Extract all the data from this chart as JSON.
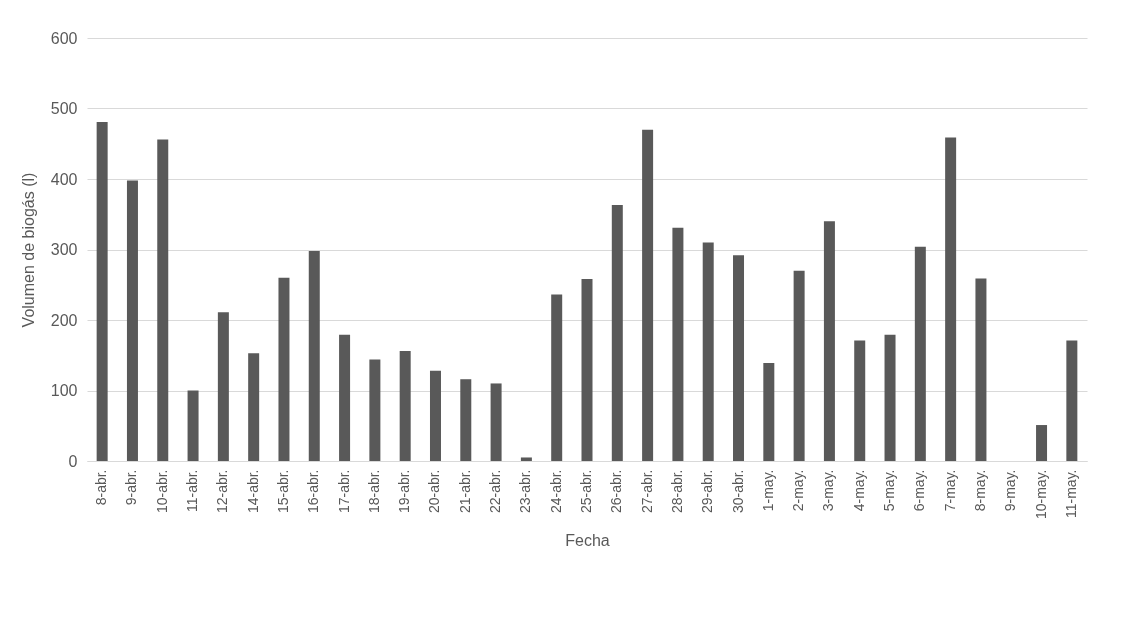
{
  "chart_data": {
    "type": "bar",
    "xlabel": "Fecha",
    "ylabel": "Volumen de biogás (l)",
    "categories": [
      "8-abr.",
      "9-abr.",
      "10-abr.",
      "11-abr.",
      "12-abr.",
      "14-abr.",
      "15-abr.",
      "16-abr.",
      "17-abr.",
      "18-abr.",
      "19-abr.",
      "20-abr.",
      "21-abr.",
      "22-abr.",
      "23-abr.",
      "24-abr.",
      "25-abr.",
      "26-abr.",
      "27-abr.",
      "28-abr.",
      "29-abr.",
      "30-abr.",
      "1-may.",
      "2-may.",
      "3-may.",
      "4-may.",
      "5-may.",
      "6-may.",
      "7-may.",
      "8-may.",
      "9-may.",
      "10-may.",
      "11-may."
    ],
    "values": [
      481,
      398,
      456,
      100,
      211,
      153,
      260,
      298,
      179,
      144,
      156,
      128,
      116,
      110,
      5,
      236,
      258,
      363,
      470,
      331,
      310,
      292,
      139,
      270,
      340,
      171,
      179,
      304,
      459,
      259,
      0,
      51,
      171
    ],
    "color": "#595959",
    "ylim": [
      0,
      600
    ],
    "yticks": [
      0,
      100,
      200,
      300,
      400,
      500,
      600
    ],
    "grid": "y"
  }
}
